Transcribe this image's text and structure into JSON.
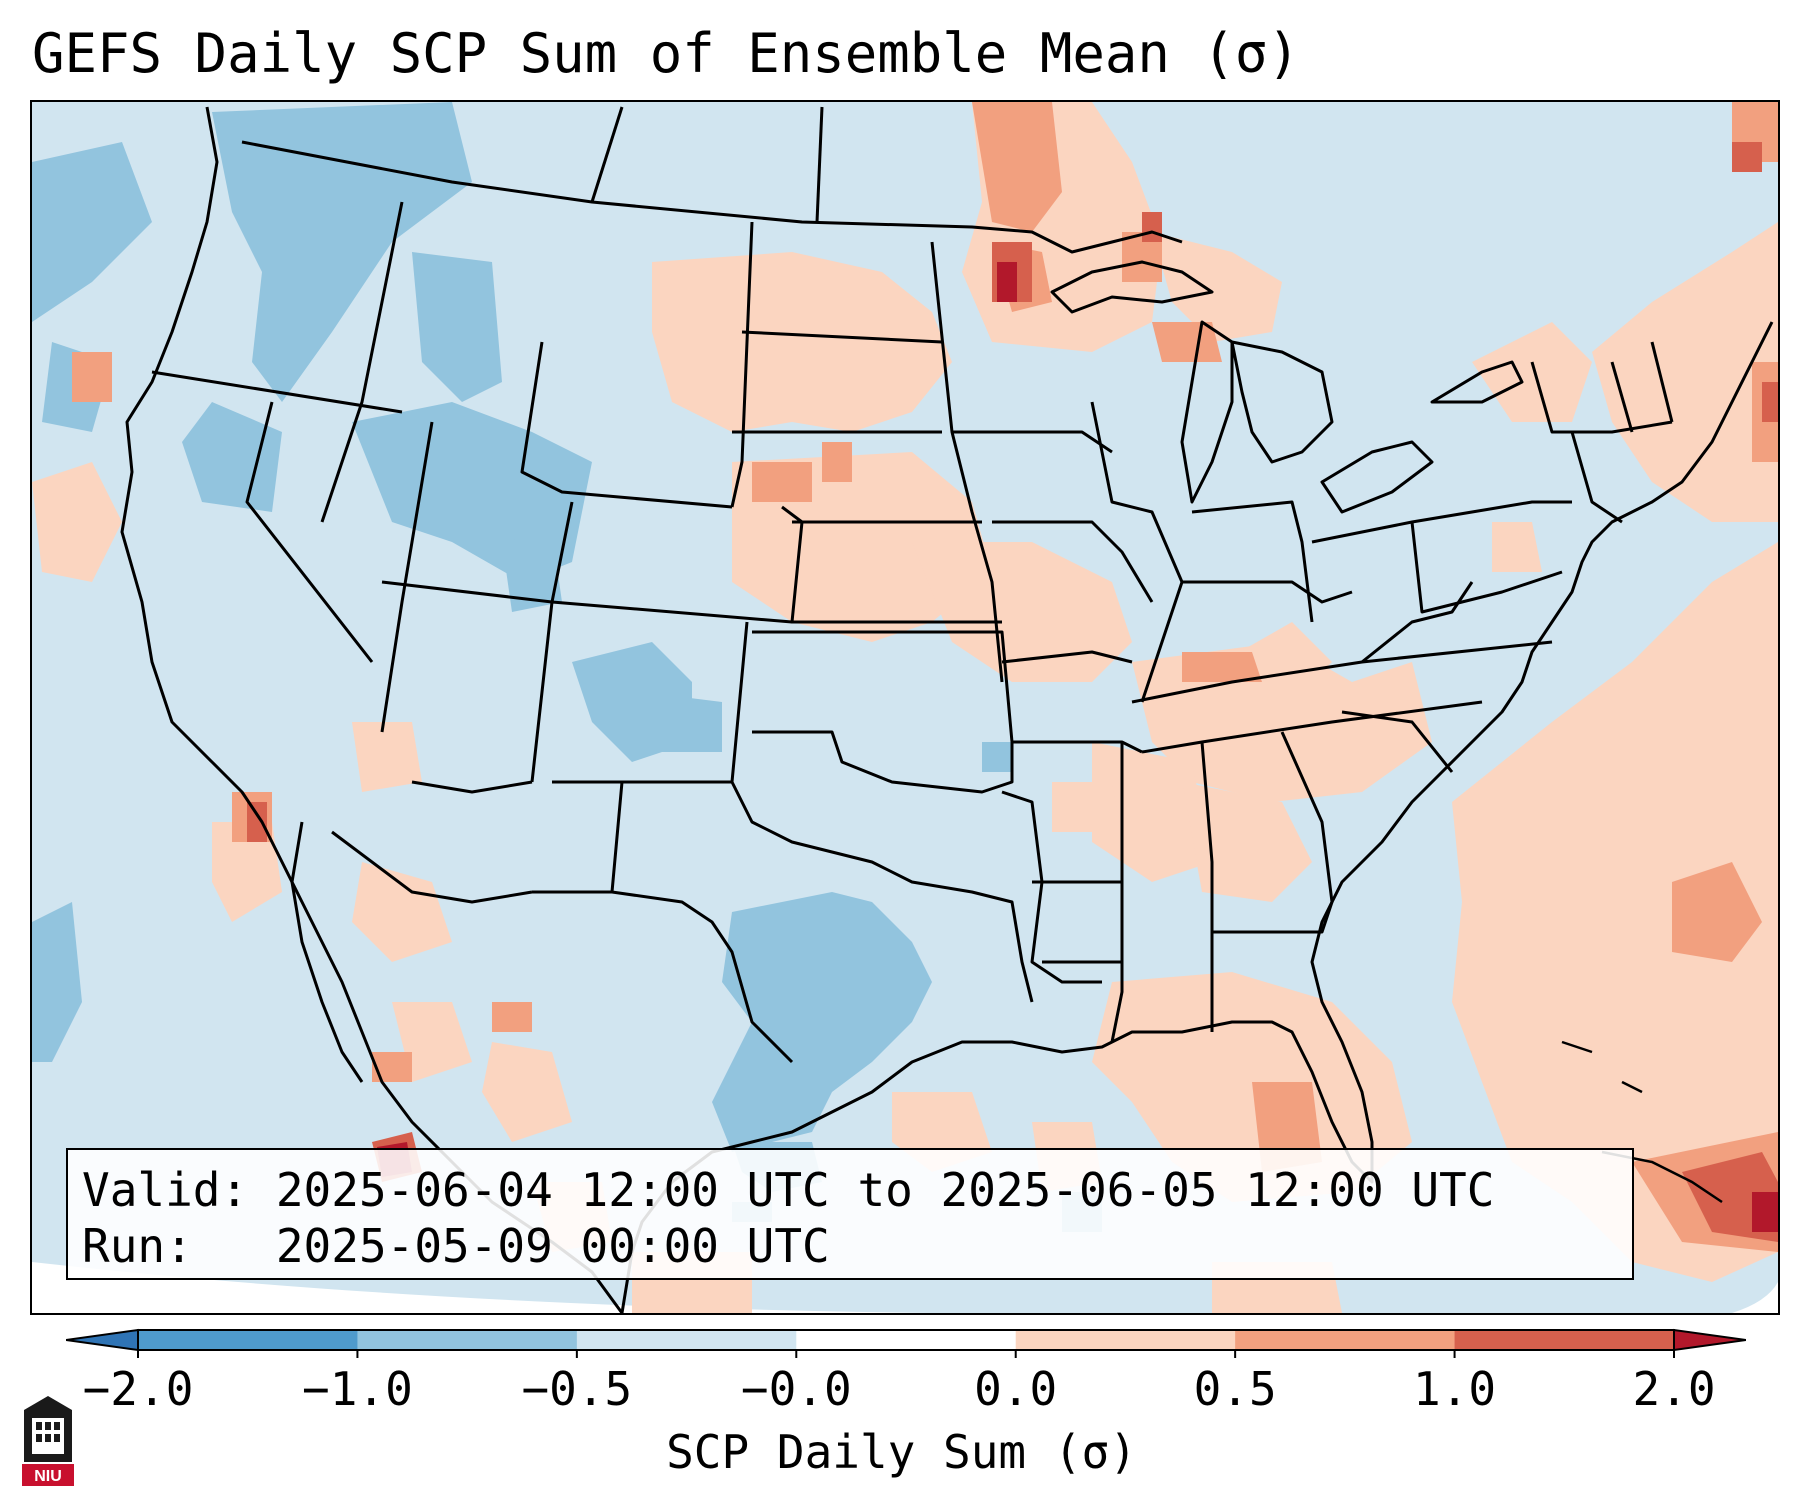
{
  "title": "GEFS Daily SCP Sum of Ensemble Mean (σ)",
  "info": {
    "valid_line": "Valid: 2025-06-04 12:00 UTC to 2025-06-05 12:00 UTC",
    "run_line": "Run:   2025-05-09 00:00 UTC"
  },
  "colorbar": {
    "label": "SCP Daily Sum (σ)",
    "ticks": [
      "−2.0",
      "−1.0",
      "−0.5",
      "−0.0",
      "0.0",
      "0.5",
      "1.0",
      "2.0"
    ],
    "colors": [
      "#2f74b5",
      "#4f9bcc",
      "#92c4de",
      "#d1e5f0",
      "#ffffff",
      "#fbd5c0",
      "#f2a07f",
      "#d6604d",
      "#b2182b"
    ],
    "extend": "both"
  },
  "map": {
    "projection": "Lambert conformal",
    "region": "Contiguous United States",
    "ocean_color": "#d1e5f0",
    "boundary_color": "#000000"
  },
  "logo": {
    "text": "NIU"
  }
}
